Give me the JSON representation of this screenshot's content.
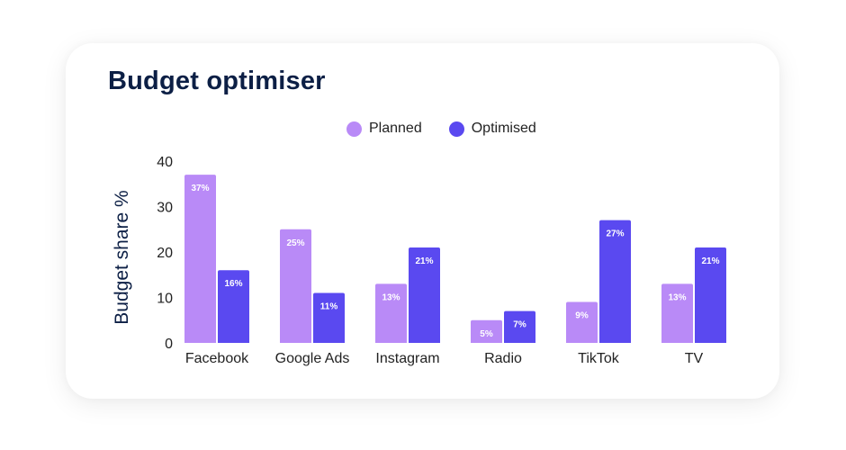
{
  "card": {
    "title": "Budget optimiser"
  },
  "chart_data": {
    "type": "bar",
    "title": "Budget optimiser",
    "xlabel": "",
    "ylabel": "Budget share %",
    "ylim": [
      0,
      40
    ],
    "yticks": [
      0,
      10,
      20,
      30,
      40
    ],
    "grid": false,
    "legend_position": "top-center",
    "categories": [
      "Facebook",
      "Google Ads",
      "Instagram",
      "Radio",
      "TikTok",
      "TV"
    ],
    "series": [
      {
        "name": "Planned",
        "color": "#b98af7",
        "values": [
          37,
          25,
          13,
          5,
          9,
          13
        ],
        "labels": [
          "37%",
          "25%",
          "13%",
          "5%",
          "9%",
          "13%"
        ]
      },
      {
        "name": "Optimised",
        "color": "#5a49f0",
        "values": [
          16,
          11,
          21,
          7,
          27,
          21
        ],
        "labels": [
          "16%",
          "11%",
          "21%",
          "7%",
          "27%",
          "21%"
        ]
      }
    ]
  },
  "colors": {
    "title": "#0c1f45",
    "axis_label": "#0c1f45",
    "tick_text": "#222222",
    "bar_label": "#ffffff"
  }
}
